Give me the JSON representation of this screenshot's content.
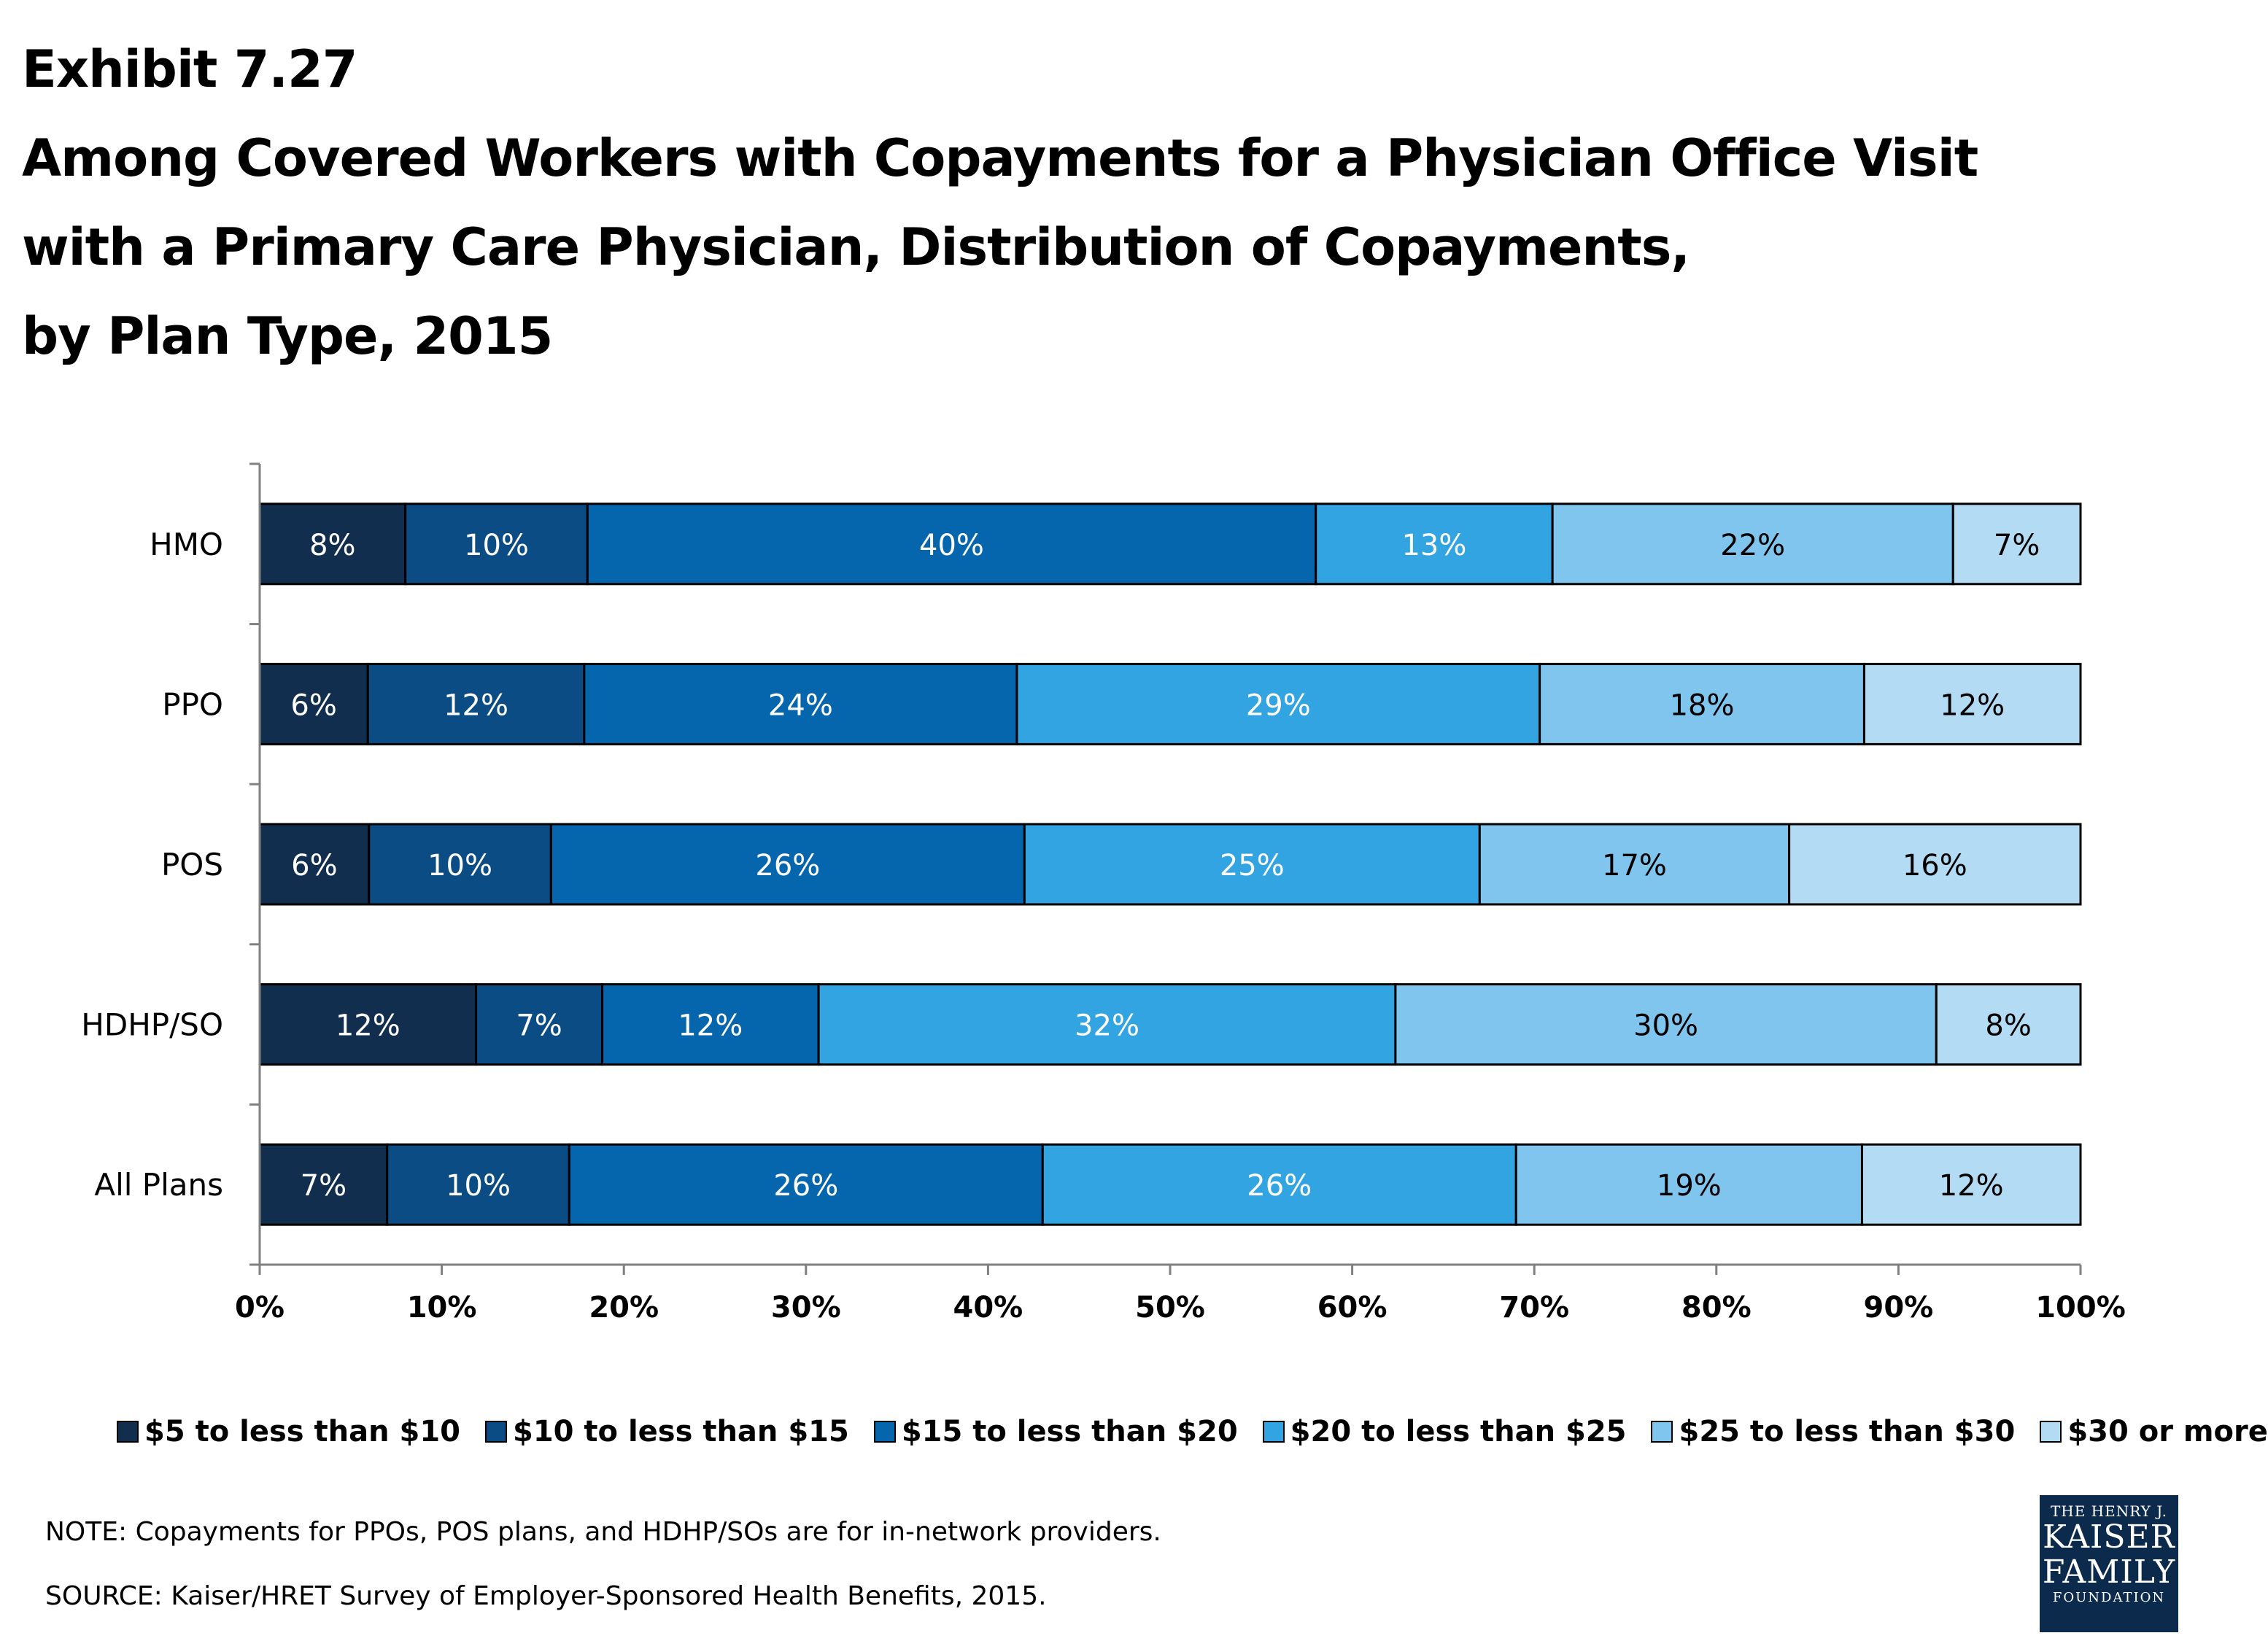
{
  "title": {
    "exhibit": "Exhibit 7.27",
    "lines": [
      "Among Covered Workers with Copayments for a Physician Office Visit",
      "with a Primary Care Physician, Distribution of Copayments,",
      "by Plan Type, 2015"
    ]
  },
  "chart_data": {
    "type": "bar",
    "orientation": "horizontal",
    "stacked": true,
    "categories": [
      "HMO",
      "PPO",
      "POS",
      "HDHP/SO",
      "All Plans"
    ],
    "series": [
      {
        "name": "$5 to less than $10",
        "color": "#112e4e",
        "values": [
          8,
          6,
          6,
          12,
          7
        ],
        "labels": [
          "8%",
          "6%",
          "6%",
          "12%",
          "7%"
        ]
      },
      {
        "name": "$10 to less than $15",
        "color": "#0a4c83",
        "values": [
          10,
          12,
          10,
          7,
          10
        ],
        "labels": [
          "10%",
          "12%",
          "10%",
          "7%",
          "10%"
        ]
      },
      {
        "name": "$15 to less than $20",
        "color": "#0565ad",
        "values": [
          40,
          24,
          26,
          12,
          26
        ],
        "labels": [
          "40%",
          "24%",
          "26%",
          "12%",
          "26%"
        ]
      },
      {
        "name": "$20 to less than $25",
        "color": "#33a4e2",
        "values": [
          13,
          29,
          25,
          32,
          26
        ],
        "labels": [
          "13%",
          "29%",
          "25%",
          "32%",
          "26%"
        ]
      },
      {
        "name": "$25 to less than $30",
        "color": "#7fc5ee",
        "values": [
          22,
          18,
          17,
          30,
          19
        ],
        "labels": [
          "22%",
          "18%",
          "17%",
          "30%",
          "19%"
        ]
      },
      {
        "name": "$30 or more",
        "color": "#b3dcf4",
        "values": [
          7,
          12,
          16,
          8,
          12
        ],
        "labels": [
          "7%",
          "12%",
          "16%",
          "8%",
          "12%"
        ]
      }
    ],
    "xlim": [
      0,
      100
    ],
    "x_ticks": [
      "0%",
      "10%",
      "20%",
      "30%",
      "40%",
      "50%",
      "60%",
      "70%",
      "80%",
      "90%",
      "100%"
    ],
    "legend_position": "bottom",
    "grid": false
  },
  "note": "NOTE: Copayments for PPOs, POS plans, and HDHP/SOs are for in-network providers.",
  "source": "SOURCE:  Kaiser/HRET Survey of Employer-Sponsored Health Benefits, 2015.",
  "logo": {
    "line1": "THE HENRY J.",
    "line2": "KAISER",
    "line3": "FAMILY",
    "line4": "FOUNDATION"
  }
}
